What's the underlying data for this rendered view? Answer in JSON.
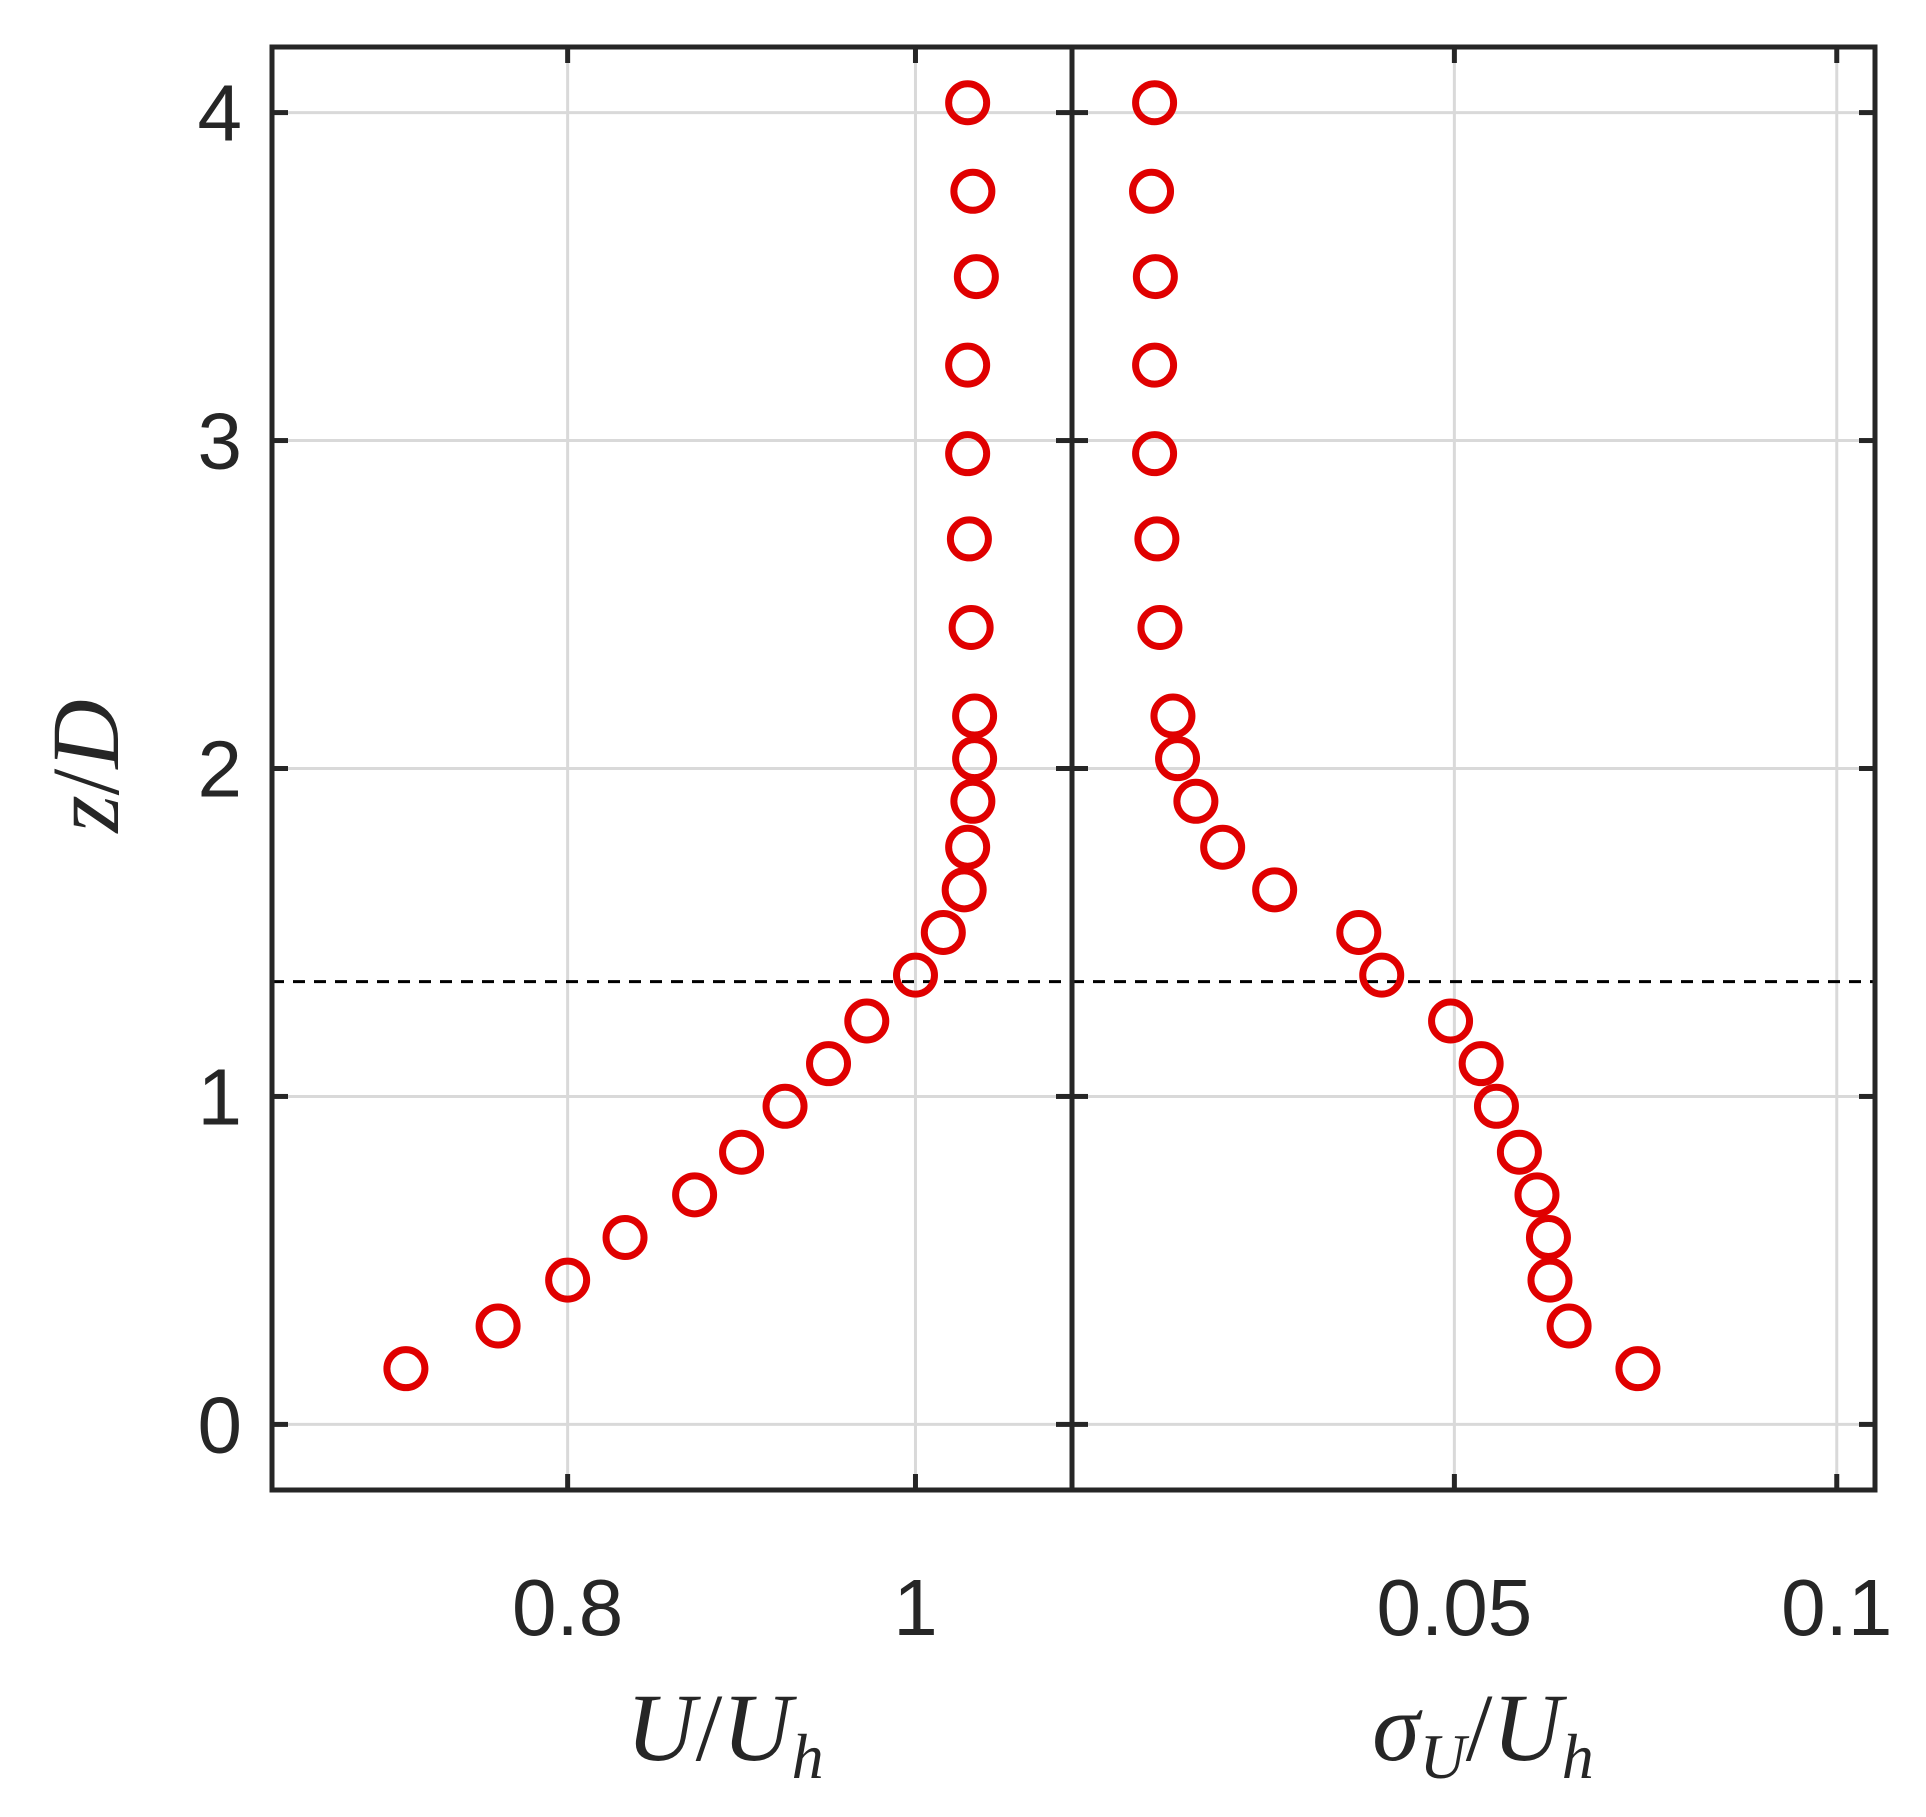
{
  "chart_data": [
    {
      "type": "scatter",
      "panel": "left",
      "xlabel": "U/U_h",
      "xlabel_main": "U",
      "xlabel_denominator": "U",
      "xlabel_subscript": "h",
      "ylabel": "z/D",
      "ylabel_main": "z",
      "ylabel_denominator": "D",
      "xlim": [
        0.63,
        1.09
      ],
      "ylim": [
        -0.2,
        4.2
      ],
      "xticks": [
        0.8,
        1.0
      ],
      "xtick_labels": [
        "0.8",
        "1"
      ],
      "yticks": [
        0,
        1,
        2,
        3,
        4
      ],
      "ytick_labels": [
        "0",
        "1",
        "2",
        "3",
        "4"
      ],
      "grid": true,
      "marker": "open-circle",
      "marker_color": "#e00000",
      "reference_line_z": 1.35,
      "series": [
        {
          "x": [
            0.707,
            0.76,
            0.8,
            0.833,
            0.873,
            0.9,
            0.925,
            0.95,
            0.972,
            1.0,
            1.016,
            1.028,
            1.03,
            1.033,
            1.034,
            1.034,
            1.032,
            1.031,
            1.03,
            1.03,
            1.035,
            1.033,
            1.03
          ],
          "y": [
            0.17,
            0.3,
            0.44,
            0.57,
            0.7,
            0.83,
            0.97,
            1.1,
            1.23,
            1.37,
            1.5,
            1.63,
            1.76,
            1.9,
            2.03,
            2.16,
            2.43,
            2.7,
            2.96,
            3.23,
            3.5,
            3.76,
            4.03
          ]
        }
      ]
    },
    {
      "type": "scatter",
      "panel": "right",
      "xlabel": "σ_U/U_h",
      "xlabel_main": "σ",
      "xlabel_main_subscript": "U",
      "xlabel_denominator": "U",
      "xlabel_subscript": "h",
      "xlim": [
        0.0,
        0.105
      ],
      "ylim": [
        -0.2,
        4.2
      ],
      "xticks": [
        0.05,
        0.1
      ],
      "xtick_labels": [
        "0.05",
        "0.1"
      ],
      "yticks": [
        0,
        1,
        2,
        3,
        4
      ],
      "grid": true,
      "marker": "open-circle",
      "marker_color": "#e00000",
      "reference_line_z": 1.35,
      "series": [
        {
          "x": [
            0.074,
            0.065,
            0.0625,
            0.0623,
            0.0608,
            0.0585,
            0.0555,
            0.0535,
            0.0495,
            0.0405,
            0.0375,
            0.0265,
            0.0197,
            0.0162,
            0.0138,
            0.0132,
            0.0115,
            0.0111,
            0.0108,
            0.0108,
            0.0109,
            0.0104,
            0.0108
          ],
          "y": [
            0.17,
            0.3,
            0.44,
            0.57,
            0.7,
            0.83,
            0.97,
            1.1,
            1.23,
            1.37,
            1.5,
            1.63,
            1.76,
            1.9,
            2.03,
            2.16,
            2.43,
            2.7,
            2.96,
            3.23,
            3.5,
            3.76,
            4.03
          ]
        }
      ]
    }
  ]
}
